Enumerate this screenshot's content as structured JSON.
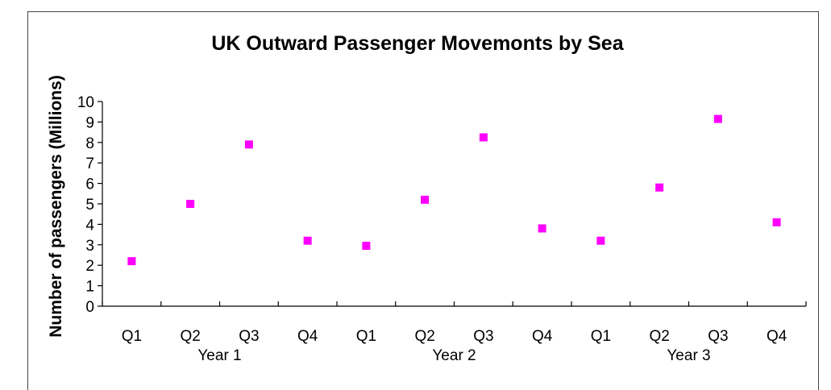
{
  "chart_data": {
    "type": "scatter",
    "title": "UK Outward Passenger Movemonts by Sea",
    "xlabel": "",
    "ylabel": "Number of passengers (Millions)",
    "ylim": [
      0,
      10
    ],
    "yticks": [
      "0",
      "1",
      "2",
      "3",
      "4",
      "5",
      "6",
      "7",
      "8",
      "9",
      "10"
    ],
    "categories": [
      "Q1",
      "Q2",
      "Q3",
      "Q4",
      "Q1",
      "Q2",
      "Q3",
      "Q4",
      "Q1",
      "Q2",
      "Q3",
      "Q4"
    ],
    "groups": [
      {
        "label": "Year 1",
        "start": 0,
        "end": 3
      },
      {
        "label": "Year 2",
        "start": 4,
        "end": 7
      },
      {
        "label": "Year 3",
        "start": 8,
        "end": 11
      }
    ],
    "values": [
      2.2,
      5.0,
      7.9,
      3.2,
      2.95,
      5.2,
      8.25,
      3.8,
      3.2,
      5.8,
      9.15,
      4.1
    ],
    "marker_color": "#ff00ff",
    "grid": false,
    "legend": "none"
  }
}
